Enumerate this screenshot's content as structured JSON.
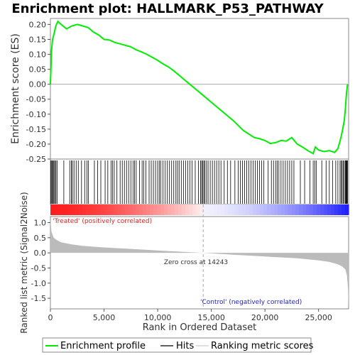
{
  "title": "Enrichment plot: HALLMARK_P53_PATHWAY",
  "ylabel_top": "Enrichment score (ES)",
  "ylabel_bottom": "Ranked list metric (Signal2Noise)",
  "xlabel": "Rank in Ordered Dataset",
  "annotations": {
    "zero_cross": "Zero cross at 14243",
    "treated": "'Treated' (positively correlated)",
    "control": "'Control' (negatively correlated)"
  },
  "legend": {
    "enrichment": "Enrichment profile",
    "hits": "Hits",
    "ranking": "Ranking metric scores"
  },
  "colors": {
    "enrichment": "#00ee00",
    "hits": "#000000",
    "metric_fill": "#bbbbbb",
    "positive": "#ff0000",
    "negative": "#0000ff",
    "zero_line": "#aaaaaa"
  },
  "chart_data": {
    "type": "line",
    "n_genes": 27800,
    "zero_cross": 14243,
    "es_axis": {
      "ylim": [
        -0.25,
        0.22
      ],
      "yticks": [
        "0.20",
        "0.15",
        "0.10",
        "0.05",
        "0.00",
        "-0.05",
        "-0.10",
        "-0.15",
        "-0.20",
        "-0.25"
      ]
    },
    "metric_axis": {
      "ylim": [
        -1.85,
        1.2
      ],
      "yticks": [
        "1.0",
        "0.5",
        "0.0",
        "-0.5",
        "-1.0",
        "-1.5"
      ]
    },
    "xticks": [
      "0",
      "5,000",
      "10,000",
      "15,000",
      "20,000",
      "25,000"
    ],
    "es_profile": {
      "x": [
        0,
        100,
        200,
        350,
        500,
        700,
        1000,
        1500,
        2000,
        2500,
        3000,
        3500,
        4000,
        4500,
        5000,
        5500,
        6000,
        6500,
        7000,
        7500,
        8000,
        8500,
        9000,
        9500,
        10000,
        10500,
        11000,
        11500,
        12000,
        12500,
        13000,
        14000,
        15000,
        16000,
        17000,
        18000,
        19000,
        19500,
        20000,
        20500,
        21000,
        21500,
        22000,
        22500,
        23000,
        23500,
        24000,
        24500,
        24700,
        25000,
        25500,
        26000,
        26500,
        26800,
        27000,
        27200,
        27400,
        27500,
        27600,
        27700
      ],
      "y": [
        0.0,
        0.11,
        0.15,
        0.17,
        0.195,
        0.21,
        0.2,
        0.185,
        0.195,
        0.2,
        0.195,
        0.19,
        0.175,
        0.165,
        0.15,
        0.148,
        0.14,
        0.135,
        0.13,
        0.125,
        0.115,
        0.108,
        0.1,
        0.09,
        0.08,
        0.068,
        0.058,
        0.045,
        0.03,
        0.015,
        0.0,
        -0.03,
        -0.06,
        -0.09,
        -0.12,
        -0.155,
        -0.178,
        -0.182,
        -0.188,
        -0.198,
        -0.195,
        -0.188,
        -0.19,
        -0.178,
        -0.2,
        -0.21,
        -0.222,
        -0.232,
        -0.21,
        -0.22,
        -0.225,
        -0.222,
        -0.228,
        -0.215,
        -0.19,
        -0.16,
        -0.12,
        -0.08,
        -0.03,
        0.0
      ]
    },
    "hits": [
      30,
      120,
      180,
      260,
      330,
      420,
      520,
      620,
      1250,
      1800,
      1950,
      2050,
      2200,
      2400,
      2600,
      2900,
      3200,
      3400,
      3550,
      4100,
      4400,
      4700,
      5100,
      5350,
      5650,
      5800,
      5950,
      6200,
      6500,
      6700,
      6900,
      7100,
      7300,
      7500,
      7700,
      7850,
      8000,
      8300,
      8550,
      8700,
      8900,
      9200,
      9400,
      9600,
      9800,
      10000,
      10150,
      10300,
      10500,
      10700,
      10900,
      11100,
      11300,
      11500,
      11700,
      11850,
      12000,
      12200,
      12400,
      12600,
      12800,
      13000,
      13200,
      13500,
      13800,
      14000,
      14100,
      14200,
      14300,
      14400,
      14550,
      14700,
      14900,
      15100,
      15300,
      15500,
      15700,
      15900,
      16200,
      16500,
      16800,
      17200,
      17500,
      17700,
      17900,
      18100,
      18300,
      18500,
      18700,
      18900,
      19100,
      19300,
      19500,
      19700,
      19900,
      20300,
      20600,
      20800,
      21000,
      21150,
      21300,
      21500,
      21700,
      21900,
      22100,
      22300,
      22500,
      22700,
      23300,
      23700,
      24200,
      24500,
      24650,
      24800,
      25300,
      25700,
      26000,
      26300,
      26600,
      26800,
      27000,
      27100,
      27200,
      27300,
      27400,
      27500,
      27550,
      27600,
      27650,
      27700
    ],
    "ranking_metric": {
      "x": [
        0,
        100,
        300,
        600,
        1000,
        2000,
        3000,
        5000,
        8000,
        11000,
        14243,
        17000,
        20000,
        23000,
        25000,
        26000,
        26800,
        27200,
        27500,
        27650,
        27750,
        27800
      ],
      "y": [
        1.1,
        0.7,
        0.5,
        0.42,
        0.35,
        0.28,
        0.23,
        0.18,
        0.12,
        0.06,
        0.0,
        -0.06,
        -0.12,
        -0.18,
        -0.25,
        -0.3,
        -0.38,
        -0.45,
        -0.55,
        -0.75,
        -1.2,
        -1.8
      ]
    }
  }
}
